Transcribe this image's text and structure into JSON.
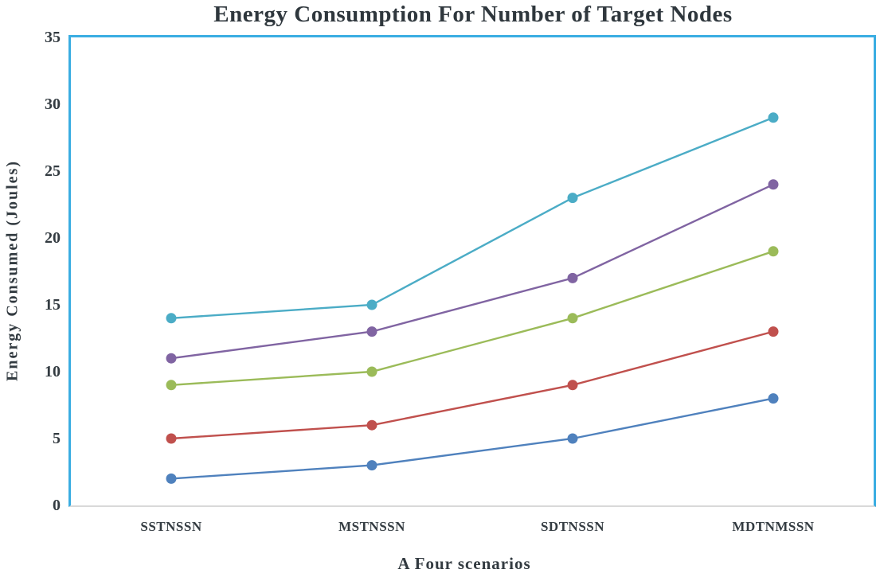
{
  "chart": {
    "title": "Energy Consumption For Number of Target Nodes",
    "ylabel": "Energy Consumed (Joules)",
    "xlabel": "A Four scenarios"
  },
  "chart_data": {
    "type": "line",
    "title": "Energy Consumption For Number of Target Nodes",
    "xlabel": "A Four scenarios",
    "ylabel": "Energy Consumed (Joules)",
    "categories": [
      "SSTNSSN",
      "MSTNSSN",
      "SDTNSSN",
      "MDTNMSSN"
    ],
    "series": [
      {
        "color": "#4F81BD",
        "values": [
          2,
          3,
          5,
          8
        ]
      },
      {
        "color": "#C0504D",
        "values": [
          5,
          6,
          9,
          13
        ]
      },
      {
        "color": "#9BBB59",
        "values": [
          9,
          10,
          14,
          19
        ]
      },
      {
        "color": "#8064A2",
        "values": [
          11,
          13,
          17,
          24
        ]
      },
      {
        "color": "#4BACC6",
        "values": [
          14,
          15,
          23,
          29
        ]
      }
    ],
    "ylim": [
      0,
      35
    ],
    "yticks": [
      0,
      5,
      10,
      15,
      20,
      25,
      30,
      35
    ],
    "grid": false,
    "legend": "none",
    "marker": "circle",
    "plot_border_color": "#3AADE2",
    "axis_line_color": "#D9D9D9",
    "text_color": "#333B41"
  }
}
